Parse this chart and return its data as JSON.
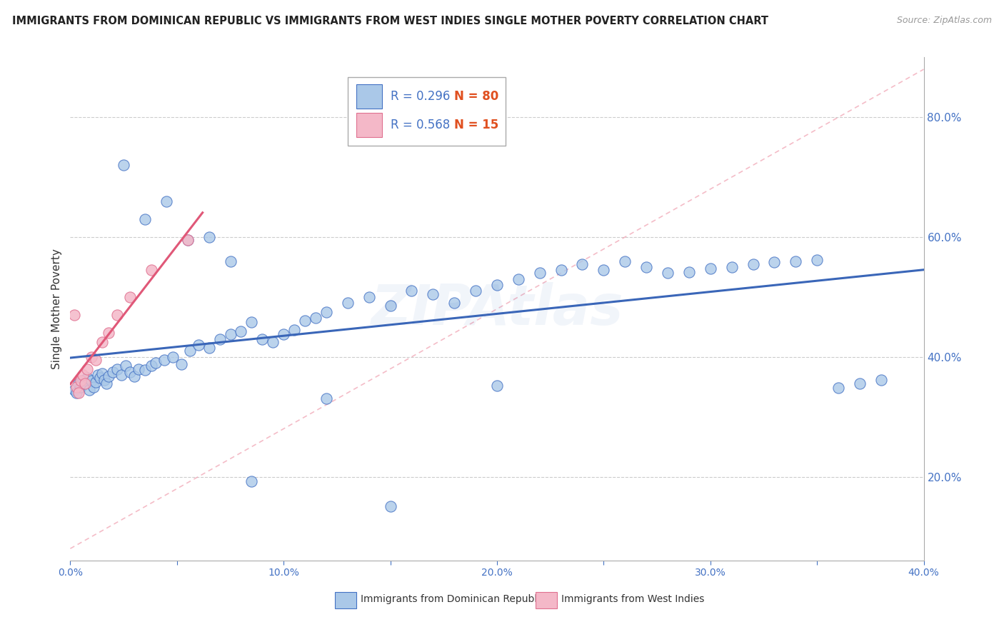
{
  "title": "IMMIGRANTS FROM DOMINICAN REPUBLIC VS IMMIGRANTS FROM WEST INDIES SINGLE MOTHER POVERTY CORRELATION CHART",
  "source": "Source: ZipAtlas.com",
  "ylabel": "Single Mother Poverty",
  "ytick_vals": [
    0.2,
    0.4,
    0.6,
    0.8
  ],
  "ytick_labels": [
    "20.0%",
    "40.0%",
    "60.0%",
    "80.0%"
  ],
  "xlim": [
    0.0,
    0.4
  ],
  "ylim": [
    0.06,
    0.9
  ],
  "blue_face": "#aac8e8",
  "blue_edge": "#4472c4",
  "pink_face": "#f4b8c8",
  "pink_edge": "#e07090",
  "blue_line": "#3a66b8",
  "pink_line": "#e05878",
  "ref_line": "#f0a0b0",
  "grid_color": "#cccccc",
  "bg_color": "#ffffff",
  "watermark_color": "#4472c4",
  "dr_x": [
    0.002,
    0.003,
    0.004,
    0.005,
    0.006,
    0.007,
    0.008,
    0.009,
    0.01,
    0.011,
    0.012,
    0.013,
    0.014,
    0.015,
    0.016,
    0.017,
    0.018,
    0.02,
    0.022,
    0.024,
    0.026,
    0.028,
    0.03,
    0.032,
    0.035,
    0.038,
    0.04,
    0.044,
    0.048,
    0.052,
    0.056,
    0.06,
    0.065,
    0.07,
    0.075,
    0.08,
    0.085,
    0.09,
    0.095,
    0.1,
    0.105,
    0.11,
    0.115,
    0.12,
    0.13,
    0.14,
    0.15,
    0.16,
    0.17,
    0.18,
    0.19,
    0.2,
    0.21,
    0.22,
    0.23,
    0.24,
    0.25,
    0.26,
    0.27,
    0.28,
    0.29,
    0.3,
    0.31,
    0.32,
    0.33,
    0.34,
    0.35,
    0.36,
    0.37,
    0.38,
    0.025,
    0.035,
    0.045,
    0.055,
    0.065,
    0.075,
    0.085,
    0.12,
    0.15,
    0.2
  ],
  "dr_y": [
    0.345,
    0.34,
    0.355,
    0.35,
    0.36,
    0.355,
    0.365,
    0.345,
    0.36,
    0.35,
    0.358,
    0.37,
    0.365,
    0.372,
    0.362,
    0.355,
    0.368,
    0.375,
    0.38,
    0.37,
    0.385,
    0.375,
    0.368,
    0.38,
    0.378,
    0.385,
    0.39,
    0.395,
    0.4,
    0.388,
    0.41,
    0.42,
    0.415,
    0.43,
    0.438,
    0.442,
    0.458,
    0.43,
    0.425,
    0.438,
    0.445,
    0.46,
    0.465,
    0.475,
    0.49,
    0.5,
    0.485,
    0.51,
    0.505,
    0.49,
    0.51,
    0.52,
    0.53,
    0.54,
    0.545,
    0.555,
    0.545,
    0.56,
    0.55,
    0.54,
    0.542,
    0.548,
    0.55,
    0.555,
    0.558,
    0.56,
    0.562,
    0.348,
    0.355,
    0.362,
    0.72,
    0.63,
    0.66,
    0.595,
    0.6,
    0.56,
    0.192,
    0.33,
    0.15,
    0.352
  ],
  "wi_x": [
    0.002,
    0.003,
    0.004,
    0.005,
    0.006,
    0.007,
    0.008,
    0.01,
    0.012,
    0.015,
    0.018,
    0.022,
    0.028,
    0.038,
    0.055
  ],
  "wi_y": [
    0.47,
    0.35,
    0.34,
    0.36,
    0.37,
    0.355,
    0.38,
    0.4,
    0.395,
    0.425,
    0.44,
    0.47,
    0.5,
    0.545,
    0.595
  ]
}
